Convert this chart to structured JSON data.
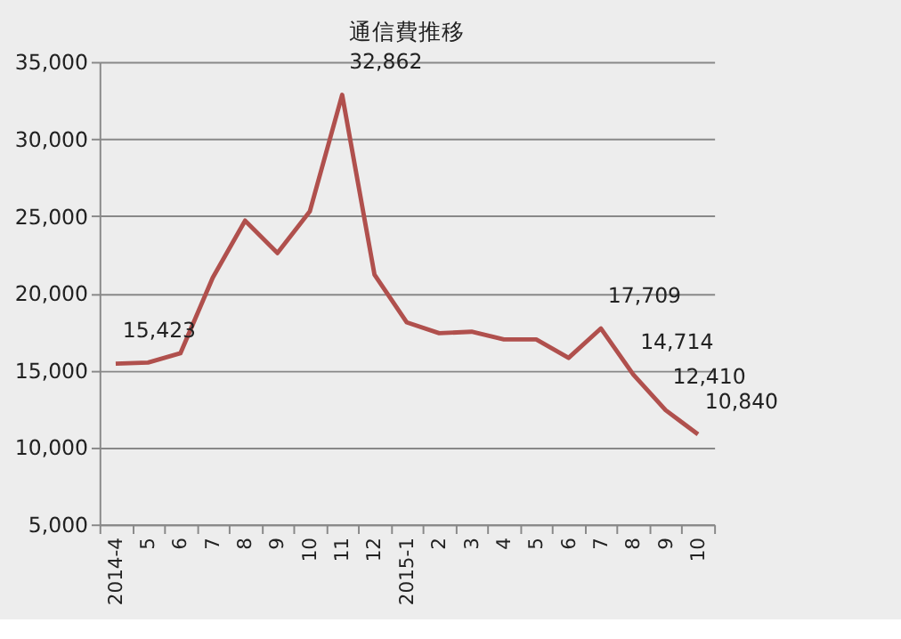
{
  "chart_data": {
    "type": "line",
    "title": "通信費推移",
    "categories": [
      "2014-4",
      "5",
      "6",
      "7",
      "8",
      "9",
      "10",
      "11",
      "12",
      "2015-1",
      "2",
      "3",
      "4",
      "5",
      "6",
      "7",
      "8",
      "9",
      "10"
    ],
    "series": [
      {
        "color": "#b0504d",
        "values": [
          15423,
          15500,
          16100,
          21000,
          24700,
          22600,
          25300,
          32862,
          21200,
          18100,
          17400,
          17500,
          17000,
          17000,
          15800,
          17709,
          14714,
          12410,
          10840
        ],
        "value_labels": [
          "15,423",
          null,
          null,
          null,
          null,
          null,
          null,
          "32,862",
          null,
          null,
          null,
          null,
          null,
          null,
          null,
          "17,709",
          "14,714",
          "12,410",
          "10,840"
        ]
      }
    ],
    "ylim": [
      5000,
      35000
    ],
    "yticks": [
      {
        "value": 5000,
        "label": "5,000"
      },
      {
        "value": 10000,
        "label": "10,000"
      },
      {
        "value": 15000,
        "label": "15,000"
      },
      {
        "value": 20000,
        "label": "20,000"
      },
      {
        "value": 25000,
        "label": "25,000"
      },
      {
        "value": 30000,
        "label": "30,000"
      },
      {
        "value": 35000,
        "label": "35,000"
      }
    ],
    "grid": "y",
    "marker": "none",
    "line_style": "solid"
  }
}
